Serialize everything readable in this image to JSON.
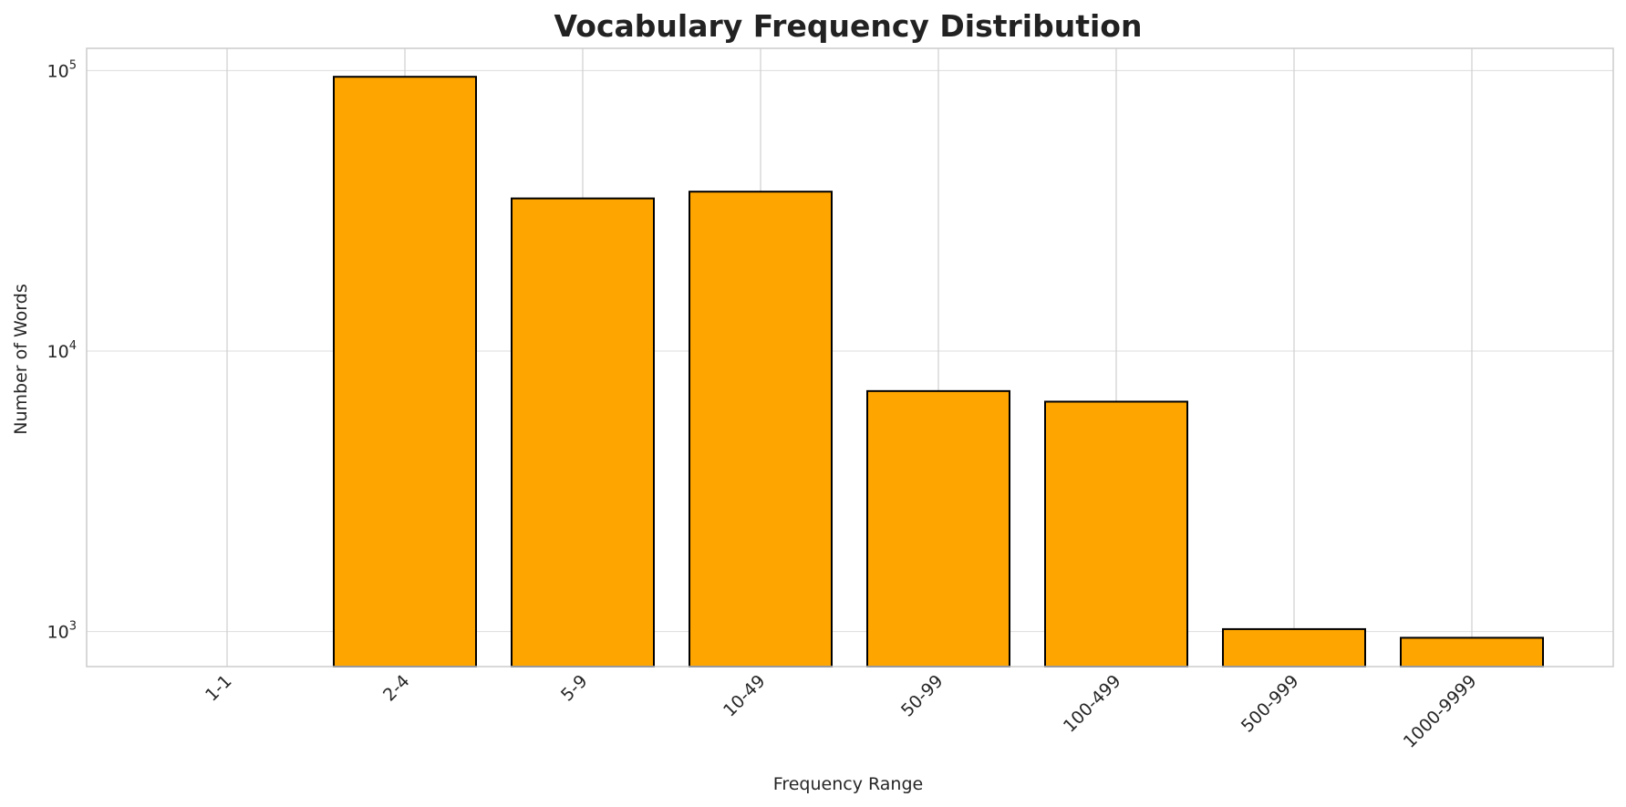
{
  "chart_data": {
    "type": "bar",
    "title": "Vocabulary Frequency Distribution",
    "xlabel": "Frequency Range",
    "ylabel": "Number of Words",
    "y_scale": "log",
    "ylim": [
      750,
      120000
    ],
    "categories": [
      "1-1",
      "2-4",
      "5-9",
      "10-49",
      "50-99",
      "100-499",
      "500-999",
      "1000-9999"
    ],
    "values": [
      null,
      95000,
      35000,
      37000,
      7200,
      6600,
      1020,
      950
    ],
    "y_ticks": [
      {
        "base": "10",
        "exp": "3",
        "value": 1000
      },
      {
        "base": "10",
        "exp": "4",
        "value": 10000
      },
      {
        "base": "10",
        "exp": "5",
        "value": 100000
      }
    ],
    "grid": true,
    "colors": {
      "bar_fill": "#FFA500",
      "bar_edge": "#000000",
      "grid": "#dddddd",
      "axes_edge": "#cccccc"
    }
  }
}
